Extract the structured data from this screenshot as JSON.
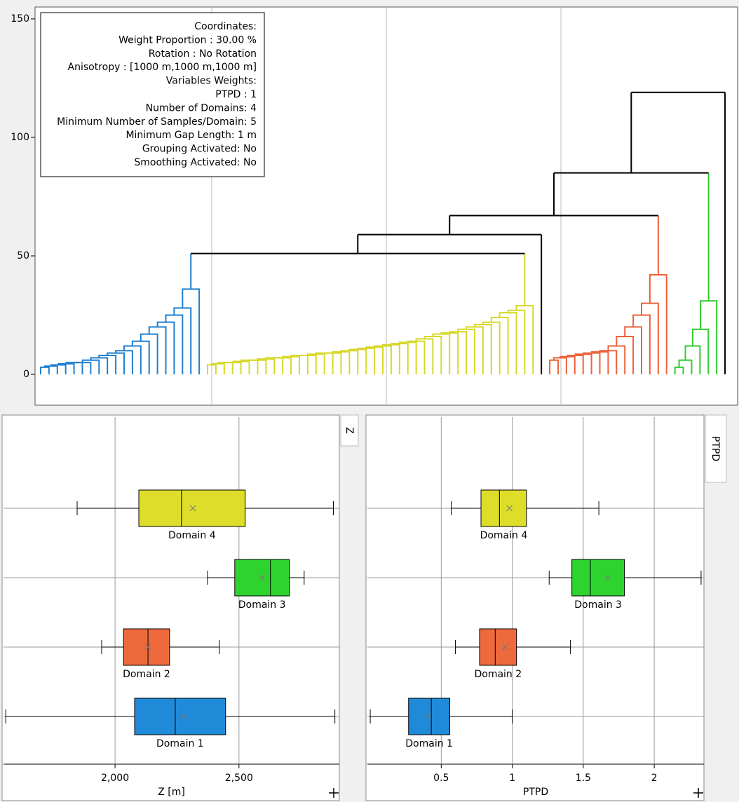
{
  "chart_data": [
    {
      "type": "dendrogram",
      "legend_lines": [
        "Coordinates:",
        "Weight Proportion : 30.00 %",
        "Rotation : No Rotation",
        "Anisotropy : [1000 m,1000 m,1000 m]",
        "Variables Weights:",
        "PTPD : 1",
        "Number of Domains: 4",
        "Minimum Number of Samples/Domain: 5",
        "Minimum Gap Length: 1 m",
        "Grouping Activated: No",
        "Smoothing Activated: No"
      ],
      "ylim": [
        -13,
        155
      ],
      "yticks": [
        0,
        50,
        100,
        150
      ],
      "clusters": [
        {
          "color": "#1f7fd0",
          "merges": [
            3,
            3.5,
            4,
            4.5,
            5,
            5,
            6,
            7,
            8,
            9,
            10,
            12,
            14,
            17,
            20,
            22,
            25,
            28,
            36
          ]
        },
        {
          "color": "#d8d82a",
          "merges": [
            4,
            4.5,
            5,
            5,
            5.5,
            6,
            6,
            6.5,
            7,
            7,
            7.5,
            8,
            8,
            8.5,
            9,
            9,
            9.5,
            10,
            10.5,
            11,
            11.5,
            12,
            12.5,
            13,
            13.5,
            14,
            15,
            16,
            17,
            17.5,
            18,
            19,
            20,
            21,
            22,
            24,
            26,
            27,
            29
          ]
        },
        {
          "color": "#000000",
          "merges": []
        },
        {
          "color": "#ee6238",
          "merges": [
            6,
            7,
            7.5,
            8,
            8.5,
            9,
            9.5,
            10,
            12,
            16,
            20,
            25,
            30,
            42
          ]
        },
        {
          "color": "#2ecc2e",
          "merges": [
            3,
            6,
            12,
            19,
            31
          ]
        },
        {
          "color": "#000000",
          "merges": []
        }
      ],
      "joins": [
        51,
        59,
        67,
        85,
        119
      ]
    },
    {
      "type": "boxplot",
      "tab": "Z",
      "xlabel": "Z [m]",
      "categories": [
        "Domain 1",
        "Domain 2",
        "Domain 3",
        "Domain 4"
      ],
      "colors": [
        "#1f8ad8",
        "#ee6a3c",
        "#2ed42e",
        "#dede2a"
      ],
      "boxes": [
        {
          "whislo": 1559,
          "q1": 2079,
          "med": 2243,
          "q3": 2446,
          "whishi": 2887,
          "mean": 2277
        },
        {
          "whislo": 1946,
          "q1": 2034,
          "med": 2133,
          "q3": 2220,
          "whishi": 2421,
          "mean": 2133
        },
        {
          "whislo": 2373,
          "q1": 2483,
          "med": 2627,
          "q3": 2703,
          "whishi": 2763,
          "mean": 2593
        },
        {
          "whislo": 1847,
          "q1": 2096,
          "med": 2268,
          "q3": 2525,
          "whishi": 2881,
          "mean": 2314
        }
      ],
      "xlim": [
        1550,
        2905
      ],
      "xticks": [
        {
          "value": 2000,
          "label": "2,000"
        },
        {
          "value": 2500,
          "label": "2,500"
        }
      ]
    },
    {
      "type": "boxplot",
      "tab": "PTPD",
      "xlabel": "PTPD",
      "categories": [
        "Domain 1",
        "Domain 2",
        "Domain 3",
        "Domain 4"
      ],
      "colors": [
        "#1f8ad8",
        "#ee6a3c",
        "#2ed42e",
        "#dede2a"
      ],
      "boxes": [
        {
          "whislo": 0.0,
          "q1": 0.27,
          "med": 0.43,
          "q3": 0.56,
          "whishi": 1.0,
          "mean": 0.41
        },
        {
          "whislo": 0.6,
          "q1": 0.77,
          "med": 0.88,
          "q3": 1.03,
          "whishi": 1.41,
          "mean": 0.95
        },
        {
          "whislo": 1.26,
          "q1": 1.42,
          "med": 1.55,
          "q3": 1.79,
          "whishi": 2.33,
          "mean": 1.67
        },
        {
          "whislo": 0.57,
          "q1": 0.78,
          "med": 0.91,
          "q3": 1.1,
          "whishi": 1.61,
          "mean": 0.98
        }
      ],
      "xlim": [
        -0.02,
        2.35
      ],
      "xticks": [
        0.5,
        1,
        1.5,
        2
      ]
    }
  ]
}
